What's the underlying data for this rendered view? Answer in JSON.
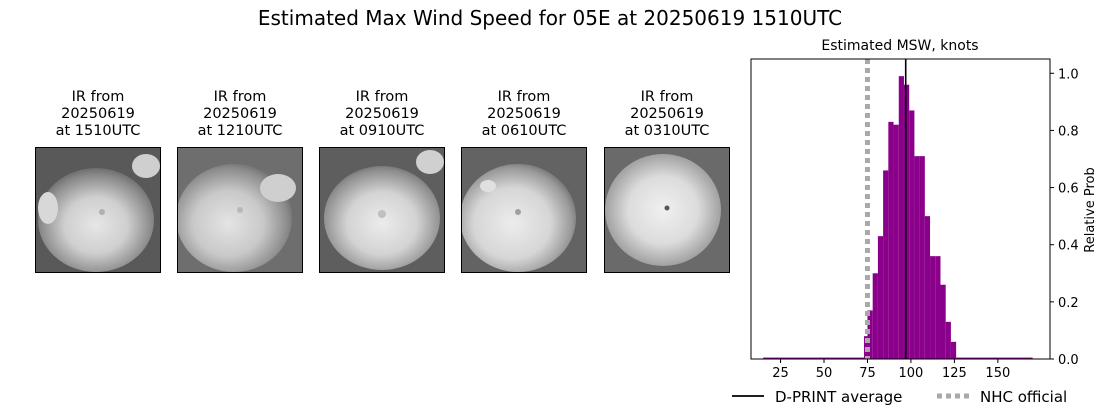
{
  "title": "Estimated Max Wind Speed for 05E at 20250619 1510UTC",
  "panels": [
    {
      "label": "IR from\n20250619\nat 1510UTC"
    },
    {
      "label": "IR from\n20250619\nat 1210UTC"
    },
    {
      "label": "IR from\n20250619\nat 0910UTC"
    },
    {
      "label": "IR from\n20250619\nat 0610UTC"
    },
    {
      "label": "IR from\n20250619\nat 0310UTC"
    }
  ],
  "chart_data": {
    "type": "bar",
    "title": "Estimated MSW, knots",
    "xlabel": "",
    "ylabel": "Relative Prob",
    "xlim": [
      8,
      180
    ],
    "ylim": [
      0,
      1.05
    ],
    "xticks": [
      25,
      50,
      75,
      100,
      125,
      150
    ],
    "yticks": [
      0.0,
      0.2,
      0.4,
      0.6,
      0.8,
      1.0
    ],
    "bar_color": "#8b008b",
    "bins": [
      {
        "x0": 15,
        "x1": 73,
        "y": 0.005
      },
      {
        "x0": 73,
        "x1": 75,
        "y": 0.08
      },
      {
        "x0": 75,
        "x1": 78,
        "y": 0.17
      },
      {
        "x0": 78,
        "x1": 81,
        "y": 0.3
      },
      {
        "x0": 81,
        "x1": 84,
        "y": 0.43
      },
      {
        "x0": 84,
        "x1": 87,
        "y": 0.66
      },
      {
        "x0": 87,
        "x1": 90,
        "y": 0.83
      },
      {
        "x0": 90,
        "x1": 93,
        "y": 0.82
      },
      {
        "x0": 93,
        "x1": 96,
        "y": 0.99
      },
      {
        "x0": 96,
        "x1": 99,
        "y": 0.96
      },
      {
        "x0": 99,
        "x1": 102,
        "y": 0.87
      },
      {
        "x0": 102,
        "x1": 105,
        "y": 0.71
      },
      {
        "x0": 105,
        "x1": 108,
        "y": 0.71
      },
      {
        "x0": 108,
        "x1": 111,
        "y": 0.5
      },
      {
        "x0": 111,
        "x1": 114,
        "y": 0.36
      },
      {
        "x0": 114,
        "x1": 117,
        "y": 0.36
      },
      {
        "x0": 117,
        "x1": 120,
        "y": 0.26
      },
      {
        "x0": 120,
        "x1": 123,
        "y": 0.13
      },
      {
        "x0": 123,
        "x1": 126,
        "y": 0.06
      },
      {
        "x0": 126,
        "x1": 170,
        "y": 0.005
      }
    ],
    "lines": [
      {
        "name": "D-PRINT average",
        "x": 97,
        "style": "solid",
        "color": "#000000"
      },
      {
        "name": "NHC official",
        "x": 75,
        "style": "dotted",
        "color": "#a9a9a9"
      }
    ],
    "legend_position": "bottom"
  }
}
